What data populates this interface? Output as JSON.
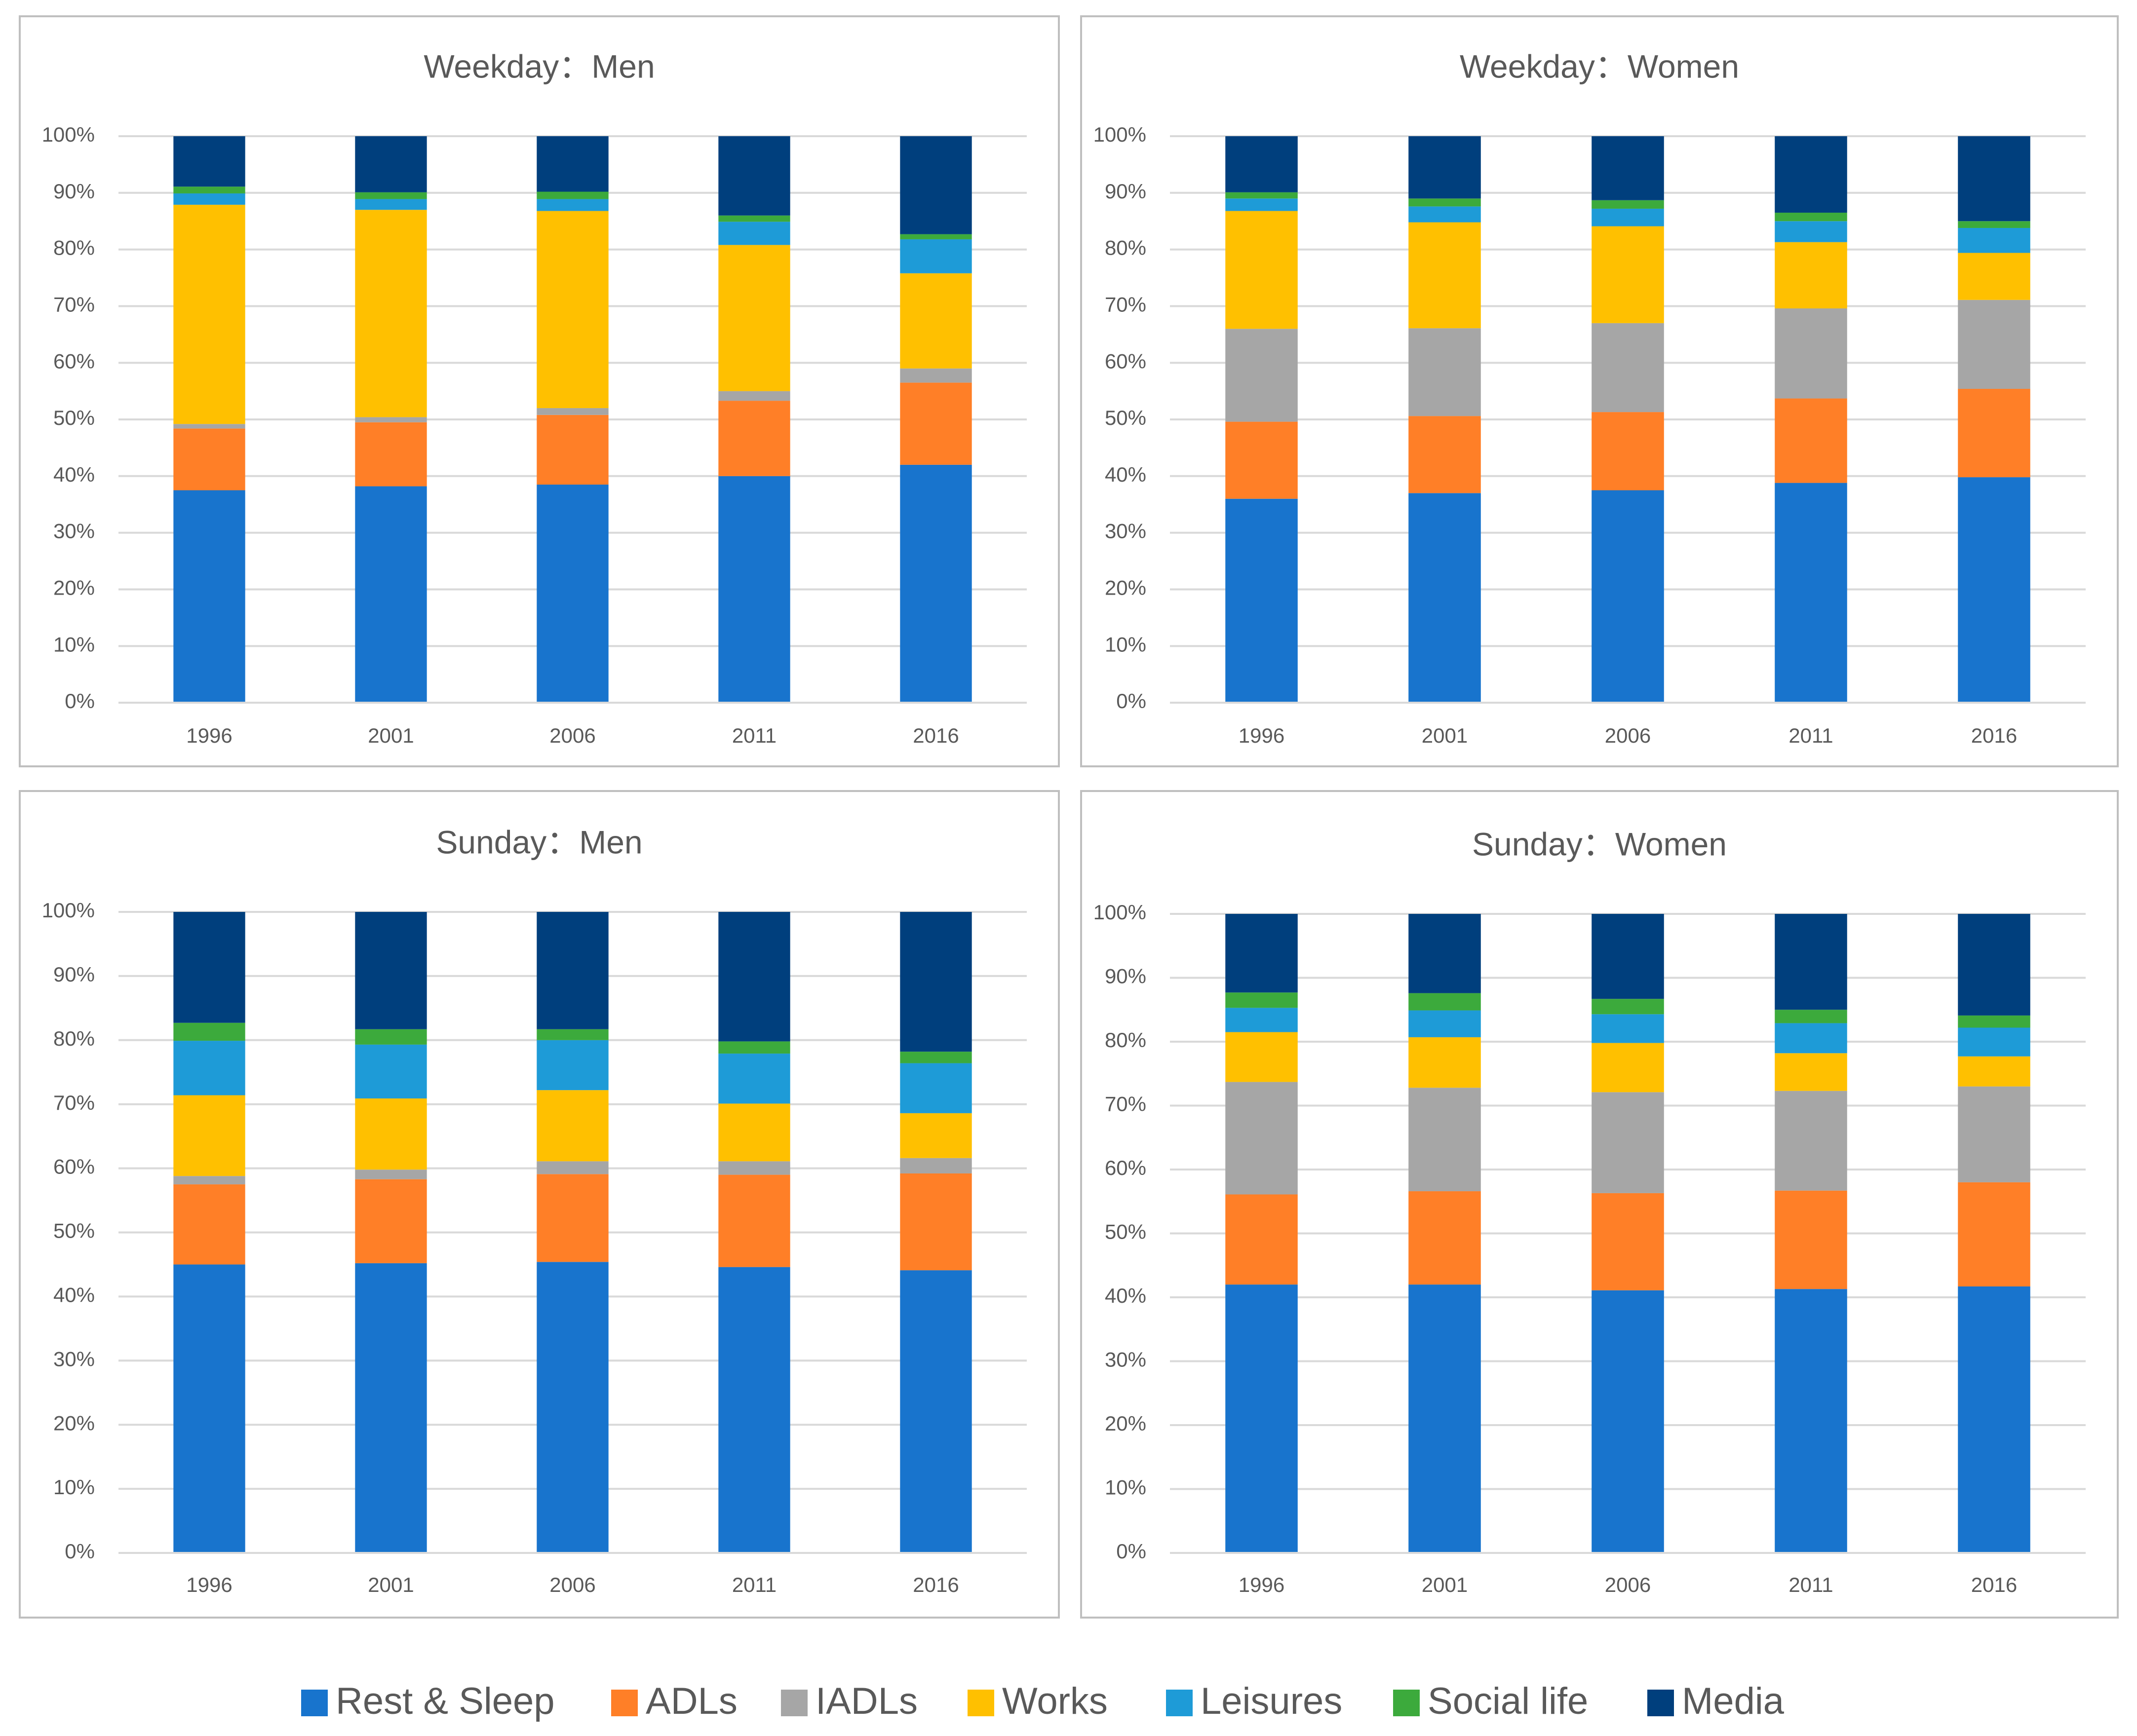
{
  "colors": {
    "Rest & Sleep": "#1874CD",
    "ADLs": "#FF7F27",
    "IADLs": "#A6A6A6",
    "Works": "#FFC000",
    "Leisures": "#1E9BD7",
    "Social life": "#3CAA3C",
    "Media": "#003F7D",
    "grid": "#D9D9D9",
    "panel_border": "#BFBFBF",
    "text": "#595959"
  },
  "legend": {
    "entries": [
      "Rest & Sleep",
      "ADLs",
      "IADLs",
      "Works",
      "Leisures",
      "Social life",
      "Media"
    ]
  },
  "chart_data": [
    {
      "type": "bar",
      "stacked": "percent",
      "title": "Weekday：Men",
      "categories": [
        "1996",
        "2001",
        "2006",
        "2011",
        "2016"
      ],
      "yticks": [
        "0%",
        "10%",
        "20%",
        "30%",
        "40%",
        "50%",
        "60%",
        "70%",
        "80%",
        "90%",
        "100%"
      ],
      "ylim": [
        0,
        100
      ],
      "xlabel": "",
      "ylabel": "",
      "series": [
        {
          "name": "Rest & Sleep",
          "values": [
            37.5,
            38.2,
            38.5,
            40.0,
            42.0
          ]
        },
        {
          "name": "ADLs",
          "values": [
            10.9,
            11.3,
            12.3,
            13.3,
            14.5
          ]
        },
        {
          "name": "IADLs",
          "values": [
            0.8,
            0.9,
            1.2,
            1.7,
            2.5
          ]
        },
        {
          "name": "Works",
          "values": [
            38.7,
            36.6,
            34.8,
            25.8,
            16.8
          ]
        },
        {
          "name": "Leisures",
          "values": [
            2.0,
            1.9,
            2.1,
            4.1,
            6.0
          ]
        },
        {
          "name": "Social life",
          "values": [
            1.2,
            1.2,
            1.3,
            1.1,
            0.9
          ]
        },
        {
          "name": "Media",
          "values": [
            8.9,
            9.9,
            9.8,
            14.0,
            17.3
          ]
        }
      ]
    },
    {
      "type": "bar",
      "stacked": "percent",
      "title": "Weekday：Women",
      "categories": [
        "1996",
        "2001",
        "2006",
        "2011",
        "2016"
      ],
      "yticks": [
        "0%",
        "10%",
        "20%",
        "30%",
        "40%",
        "50%",
        "60%",
        "70%",
        "80%",
        "90%",
        "100%"
      ],
      "ylim": [
        0,
        100
      ],
      "xlabel": "",
      "ylabel": "",
      "series": [
        {
          "name": "Rest & Sleep",
          "values": [
            36.0,
            37.0,
            37.5,
            38.8,
            39.8
          ]
        },
        {
          "name": "ADLs",
          "values": [
            13.6,
            13.6,
            13.8,
            14.9,
            15.6
          ]
        },
        {
          "name": "IADLs",
          "values": [
            16.4,
            15.5,
            15.7,
            15.9,
            15.7
          ]
        },
        {
          "name": "Works",
          "values": [
            20.8,
            18.7,
            17.1,
            11.7,
            8.3
          ]
        },
        {
          "name": "Leisures",
          "values": [
            2.2,
            2.8,
            3.1,
            3.7,
            4.4
          ]
        },
        {
          "name": "Social life",
          "values": [
            1.1,
            1.4,
            1.5,
            1.5,
            1.2
          ]
        },
        {
          "name": "Media",
          "values": [
            9.9,
            11.0,
            11.3,
            13.5,
            15.0
          ]
        }
      ]
    },
    {
      "type": "bar",
      "stacked": "percent",
      "title": "Sunday：Men",
      "categories": [
        "1996",
        "2001",
        "2006",
        "2011",
        "2016"
      ],
      "yticks": [
        "0%",
        "10%",
        "20%",
        "30%",
        "40%",
        "50%",
        "60%",
        "70%",
        "80%",
        "90%",
        "100%"
      ],
      "ylim": [
        0,
        100
      ],
      "xlabel": "",
      "ylabel": "",
      "series": [
        {
          "name": "Rest & Sleep",
          "values": [
            45.0,
            45.2,
            45.4,
            44.6,
            44.1
          ]
        },
        {
          "name": "ADLs",
          "values": [
            12.5,
            13.1,
            13.7,
            14.4,
            15.1
          ]
        },
        {
          "name": "IADLs",
          "values": [
            1.3,
            1.5,
            2.0,
            2.1,
            2.4
          ]
        },
        {
          "name": "Works",
          "values": [
            12.6,
            11.1,
            11.1,
            9.0,
            7.0
          ]
        },
        {
          "name": "Leisures",
          "values": [
            8.5,
            8.4,
            7.8,
            7.8,
            7.8
          ]
        },
        {
          "name": "Social life",
          "values": [
            2.8,
            2.4,
            1.7,
            1.9,
            1.8
          ]
        },
        {
          "name": "Media",
          "values": [
            17.3,
            18.3,
            18.3,
            20.2,
            21.8
          ]
        }
      ]
    },
    {
      "type": "bar",
      "stacked": "percent",
      "title": "Sunday：Women",
      "categories": [
        "1996",
        "2001",
        "2006",
        "2011",
        "2016"
      ],
      "yticks": [
        "0%",
        "10%",
        "20%",
        "30%",
        "40%",
        "50%",
        "60%",
        "70%",
        "80%",
        "90%",
        "100%"
      ],
      "ylim": [
        0,
        100
      ],
      "xlabel": "",
      "ylabel": "",
      "series": [
        {
          "name": "Rest & Sleep",
          "values": [
            42.0,
            42.0,
            41.1,
            41.3,
            41.7
          ]
        },
        {
          "name": "ADLs",
          "values": [
            14.1,
            14.6,
            15.2,
            15.4,
            16.3
          ]
        },
        {
          "name": "IADLs",
          "values": [
            17.6,
            16.2,
            15.8,
            15.6,
            15.0
          ]
        },
        {
          "name": "Works",
          "values": [
            7.8,
            7.9,
            7.7,
            5.9,
            4.7
          ]
        },
        {
          "name": "Leisures",
          "values": [
            3.8,
            4.2,
            4.5,
            4.7,
            4.5
          ]
        },
        {
          "name": "Social life",
          "values": [
            2.4,
            2.7,
            2.4,
            2.1,
            1.9
          ]
        },
        {
          "name": "Media",
          "values": [
            12.3,
            12.4,
            13.3,
            15.0,
            15.9
          ]
        }
      ]
    }
  ]
}
